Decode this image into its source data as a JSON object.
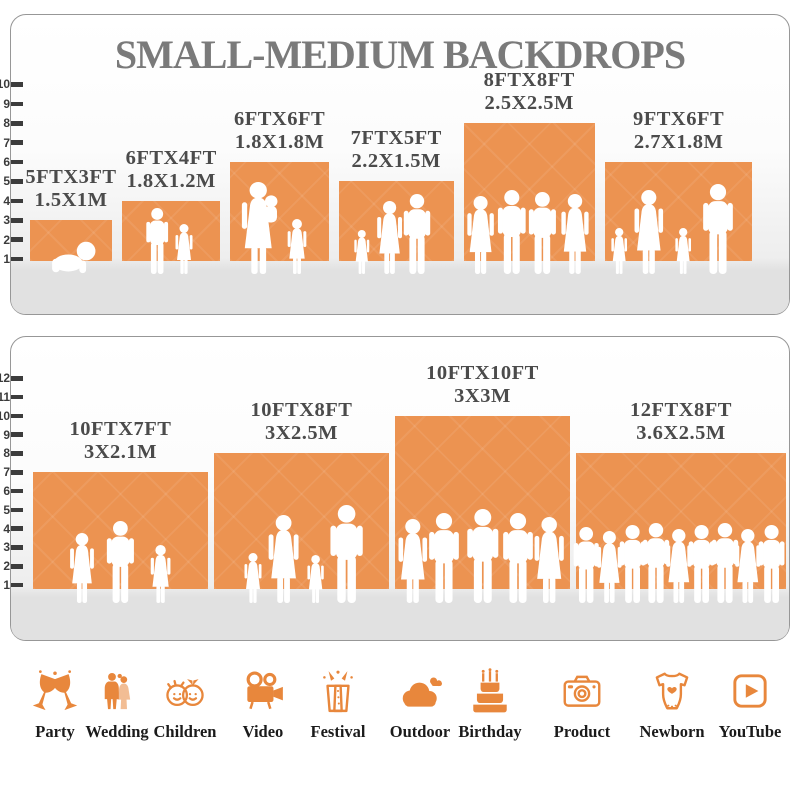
{
  "title": "SMALL-MEDIUM BACKDROPS",
  "colors": {
    "bar_orange": "#ec9351",
    "icon_orange": "#e8873c",
    "title_gray": "#7a7a7a",
    "label_gray": "#4b4b4b",
    "floor_gray": "#e1e1e1"
  },
  "chart_data": [
    {
      "type": "bar",
      "name": "small-medium-backdrops-upper-panel",
      "title": "SMALL-MEDIUM BACKDROPS",
      "ylim": [
        1,
        10
      ],
      "yticks": [
        1,
        2,
        3,
        4,
        5,
        6,
        7,
        8,
        9,
        10
      ],
      "yunit": "ft",
      "categories": [
        "5FTX3FT",
        "6FTX4FT",
        "6FTX6FT",
        "7FTX5FT",
        "8FTX8FT",
        "9FTX6FT"
      ],
      "metric_labels": [
        "1.5X1M",
        "1.8X1.2M",
        "1.8X1.8M",
        "2.2X1.5M",
        "2.5X2.5M",
        "2.7X1.8M"
      ],
      "bars": [
        {
          "label_ft": "5FTX3FT",
          "label_m": "1.5X1M",
          "width_ft": 5,
          "height_ft": 3,
          "figures": [
            [
              "baby",
              0.52,
              34
            ]
          ]
        },
        {
          "label_ft": "6FTX4FT",
          "label_m": "1.8X1.2M",
          "width_ft": 6,
          "height_ft": 4,
          "figures": [
            [
              "male",
              0.36,
              66
            ],
            [
              "female",
              0.63,
              50
            ]
          ]
        },
        {
          "label_ft": "6FTX6FT",
          "label_m": "1.8X1.8M",
          "width_ft": 6,
          "height_ft": 6,
          "figures": [
            [
              "womanbaby",
              0.3,
              92
            ],
            [
              "female",
              0.68,
              55
            ]
          ]
        },
        {
          "label_ft": "7FTX5FT",
          "label_m": "2.2X1.5M",
          "width_ft": 7,
          "height_ft": 5,
          "figures": [
            [
              "female",
              0.2,
              44
            ],
            [
              "female",
              0.44,
              73
            ],
            [
              "male",
              0.68,
              80
            ]
          ]
        },
        {
          "label_ft": "8FTX8FT",
          "label_m": "2.5X2.5M",
          "width_ft": 8,
          "height_ft": 8,
          "figures": [
            [
              "female",
              0.13,
              78
            ],
            [
              "male",
              0.37,
              84
            ],
            [
              "male",
              0.6,
              82
            ],
            [
              "female",
              0.85,
              80
            ]
          ]
        },
        {
          "label_ft": "9FTX6FT",
          "label_m": "2.7X1.8M",
          "width_ft": 9,
          "height_ft": 6,
          "figures": [
            [
              "female",
              0.1,
              46
            ],
            [
              "female",
              0.3,
              84
            ],
            [
              "female",
              0.53,
              46
            ],
            [
              "male",
              0.77,
              90
            ]
          ]
        }
      ]
    },
    {
      "type": "bar",
      "name": "small-medium-backdrops-lower-panel",
      "title": "",
      "ylim": [
        1,
        12
      ],
      "yticks": [
        1,
        2,
        3,
        4,
        5,
        6,
        7,
        8,
        9,
        10,
        11,
        12
      ],
      "yunit": "ft",
      "categories": [
        "10FTX7FT",
        "10FTX8FT",
        "10FTX10FT",
        "12FTX8FT"
      ],
      "metric_labels": [
        "3X2.1M",
        "3X2.5M",
        "3X3M",
        "3.6X2.5M"
      ],
      "bars": [
        {
          "label_ft": "10FTX7FT",
          "label_m": "3X2.1M",
          "width_ft": 10,
          "height_ft": 7,
          "figures": [
            [
              "female",
              0.28,
              70
            ],
            [
              "male",
              0.5,
              82
            ],
            [
              "female",
              0.73,
              58
            ]
          ]
        },
        {
          "label_ft": "10FTX8FT",
          "label_m": "3X2.5M",
          "width_ft": 10,
          "height_ft": 8,
          "figures": [
            [
              "female",
              0.22,
              50
            ],
            [
              "female",
              0.4,
              88
            ],
            [
              "female",
              0.58,
              48
            ],
            [
              "male",
              0.76,
              98
            ]
          ]
        },
        {
          "label_ft": "10FTX10FT",
          "label_m": "3X3M",
          "width_ft": 10,
          "height_ft": 10,
          "figures": [
            [
              "female",
              0.1,
              84
            ],
            [
              "male",
              0.28,
              90
            ],
            [
              "male",
              0.5,
              94
            ],
            [
              "male",
              0.7,
              90
            ],
            [
              "female",
              0.88,
              86
            ]
          ]
        },
        {
          "label_ft": "12FTX8FT",
          "label_m": "3.6X2.5M",
          "width_ft": 12,
          "height_ft": 8,
          "figures": [
            [
              "male",
              0.05,
              76
            ],
            [
              "female",
              0.16,
              72
            ],
            [
              "male",
              0.27,
              78
            ],
            [
              "male",
              0.38,
              80
            ],
            [
              "female",
              0.49,
              74
            ],
            [
              "male",
              0.6,
              78
            ],
            [
              "male",
              0.71,
              80
            ],
            [
              "female",
              0.82,
              74
            ],
            [
              "male",
              0.93,
              78
            ]
          ]
        }
      ]
    }
  ],
  "categories": [
    {
      "label": "Party",
      "icon": "party-icon"
    },
    {
      "label": "Wedding",
      "icon": "wedding-icon"
    },
    {
      "label": "Children",
      "icon": "children-icon"
    },
    {
      "label": "Video",
      "icon": "video-icon"
    },
    {
      "label": "Festival",
      "icon": "festival-icon"
    },
    {
      "label": "Outdoor",
      "icon": "outdoor-icon"
    },
    {
      "label": "Birthday",
      "icon": "birthday-icon"
    },
    {
      "label": "Product",
      "icon": "product-icon"
    },
    {
      "label": "Newborn",
      "icon": "newborn-icon"
    },
    {
      "label": "YouTube",
      "icon": "youtube-icon"
    }
  ]
}
